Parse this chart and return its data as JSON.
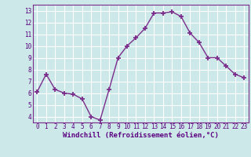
{
  "x": [
    0,
    1,
    2,
    3,
    4,
    5,
    6,
    7,
    8,
    9,
    10,
    11,
    12,
    13,
    14,
    15,
    16,
    17,
    18,
    19,
    20,
    21,
    22,
    23
  ],
  "y": [
    6.1,
    7.6,
    6.3,
    6.0,
    5.9,
    5.5,
    4.0,
    3.7,
    6.3,
    9.0,
    10.0,
    10.7,
    11.5,
    12.8,
    12.8,
    12.9,
    12.5,
    11.1,
    10.3,
    9.0,
    9.0,
    8.3,
    7.6,
    7.3
  ],
  "xlabel": "Windchill (Refroidissement éolien,°C)",
  "ylim": [
    3.5,
    13.5
  ],
  "xlim": [
    -0.5,
    23.5
  ],
  "yticks": [
    4,
    5,
    6,
    7,
    8,
    9,
    10,
    11,
    12,
    13
  ],
  "xtick_labels": [
    "0",
    "1",
    "2",
    "3",
    "4",
    "5",
    "6",
    "7",
    "8",
    "9",
    "10",
    "11",
    "12",
    "13",
    "14",
    "15",
    "16",
    "17",
    "18",
    "19",
    "20",
    "21",
    "22",
    "23"
  ],
  "line_color": "#7B2D8B",
  "marker": "+",
  "bg_color": "#cce8e8",
  "grid_color": "#ffffff",
  "xlabel_color": "#5B0080",
  "tick_color": "#5B0080",
  "tick_fontsize": 5.5,
  "xlabel_fontsize": 6.5,
  "linewidth": 1.0,
  "markersize": 4,
  "markeredgewidth": 1.3
}
